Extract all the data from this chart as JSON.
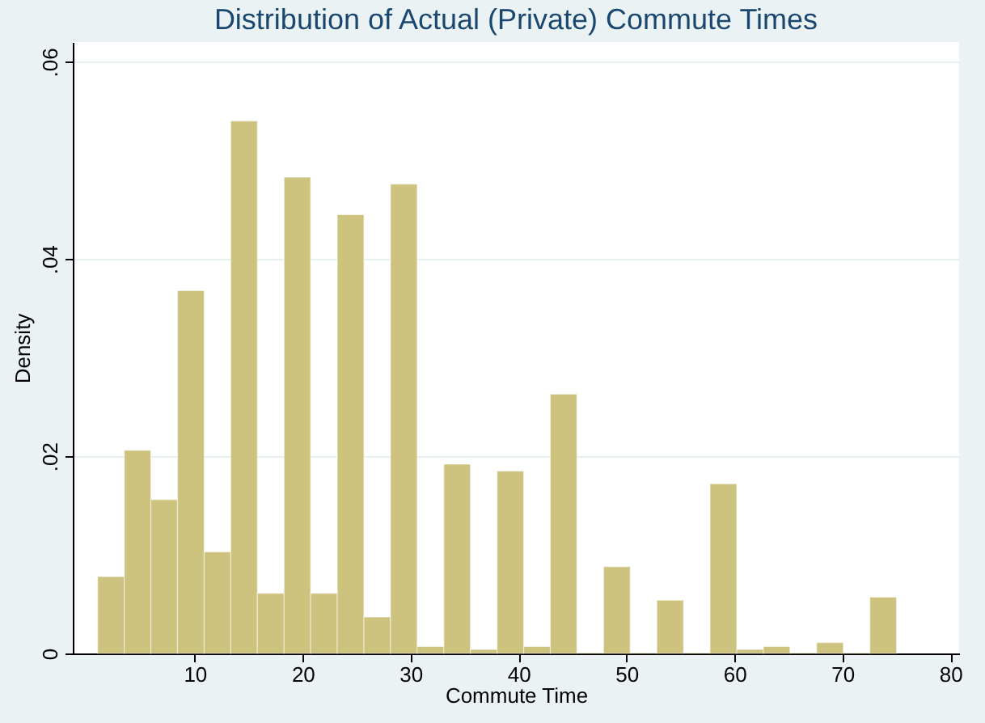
{
  "chart_data": {
    "type": "histogram",
    "title": "Distribution of Actual (Private) Commute Times",
    "xlabel": "Commute Time",
    "ylabel": "Density",
    "bins": [
      1,
      3.47,
      5.93,
      8.4,
      10.87,
      13.33,
      15.8,
      18.27,
      20.73,
      23.2,
      25.67,
      28.13,
      30.6,
      33.07,
      35.53,
      38,
      40.47,
      42.93,
      45.4,
      47.87,
      50.33,
      52.8,
      55.27,
      57.73,
      60.2,
      62.67,
      65.13,
      67.6,
      70.07,
      72.53,
      75
    ],
    "values": [
      0.0078,
      0.0206,
      0.0156,
      0.0368,
      0.0103,
      0.054,
      0.0061,
      0.0483,
      0.0061,
      0.0445,
      0.0037,
      0.0476,
      0.0007,
      0.0192,
      0.0004,
      0.0185,
      0.0007,
      0.0263,
      0,
      0.0088,
      0,
      0.0054,
      0,
      0.0172,
      0.0004,
      0.0007,
      0,
      0.0011,
      0,
      0.0057
    ],
    "color": "#cdc37f",
    "xlim": [
      -1.3,
      80.8
    ],
    "xticks": [
      10,
      20,
      30,
      40,
      50,
      60,
      70,
      80
    ],
    "ylim": [
      0,
      0.062
    ],
    "yticks": [
      0,
      {
        "value": 0.02,
        "label": ".02"
      },
      {
        "value": 0.04,
        "label": ".04"
      },
      {
        "value": 0.06,
        "label": ".06"
      }
    ],
    "grid": "y"
  }
}
